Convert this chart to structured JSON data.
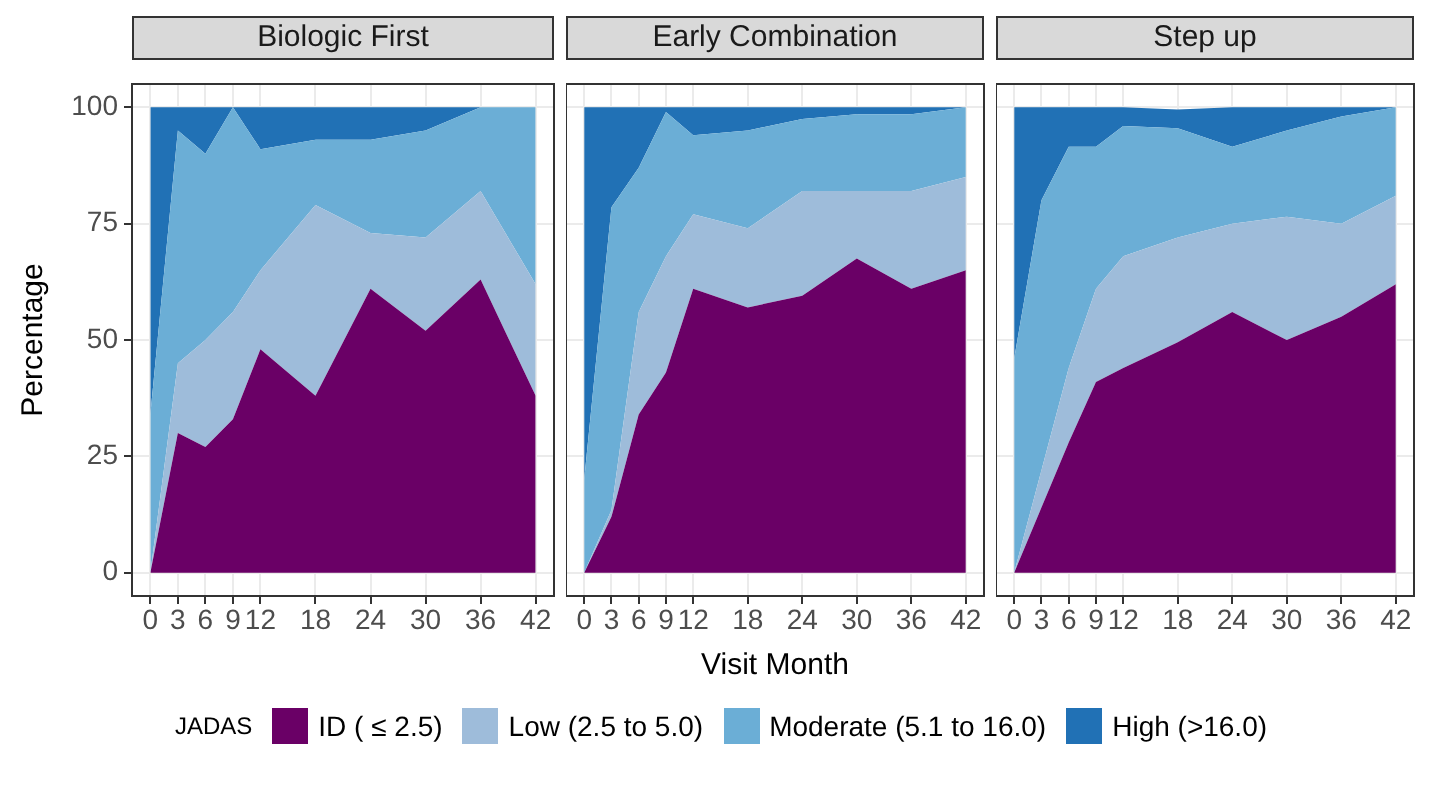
{
  "chart_data": [
    {
      "type": "area",
      "title": "Biologic First",
      "ylabel": "Percentage",
      "stacked": true,
      "grid": true,
      "legend": "bottom",
      "legend_title": "JADAS",
      "x": [
        0,
        3,
        6,
        9,
        12,
        18,
        24,
        30,
        36,
        42
      ],
      "xlim": [
        -2,
        44
      ],
      "xticks": [
        0,
        3,
        6,
        9,
        12,
        18,
        24,
        30,
        36,
        42
      ],
      "ylim": [
        -5,
        105
      ],
      "yticks": [
        0,
        25,
        50,
        75,
        100
      ],
      "series": [
        {
          "name": "ID ( ≤ 2.5)",
          "color": "#6a0066",
          "values": [
            0,
            30,
            27,
            33,
            48,
            38,
            61,
            52,
            63,
            38
          ]
        },
        {
          "name": "Low (2.5 to 5.0)",
          "color": "#9ebcda",
          "values": [
            0,
            15,
            23,
            23,
            17,
            41,
            12,
            20,
            19,
            24
          ]
        },
        {
          "name": "Moderate (5.1 to 16.0)",
          "color": "#6baed6",
          "values": [
            34,
            50,
            40,
            44,
            26,
            14,
            20,
            23,
            18,
            38
          ]
        },
        {
          "name": "High (>16.0)",
          "color": "#2171b5",
          "values": [
            66,
            5,
            10,
            0,
            9,
            7,
            7,
            5,
            0,
            0
          ]
        }
      ]
    },
    {
      "type": "area",
      "title": "Early Combination",
      "xlabel": "Visit Month",
      "stacked": true,
      "grid": true,
      "tick_labels": "x",
      "x": [
        0,
        3,
        6,
        9,
        12,
        18,
        24,
        30,
        36,
        42
      ],
      "xlim": [
        -2,
        44
      ],
      "xticks": [
        0,
        3,
        6,
        9,
        12,
        18,
        24,
        30,
        36,
        42
      ],
      "ylim": [
        -5,
        105
      ],
      "yticks": [
        0,
        25,
        50,
        75,
        100
      ],
      "series": [
        {
          "color": "#6a0066",
          "values": [
            0,
            12,
            34,
            43,
            61,
            57,
            59.5,
            67.5,
            61,
            65
          ]
        },
        {
          "color": "#9ebcda",
          "values": [
            0,
            1.5,
            22,
            25,
            16,
            17,
            22.5,
            14.5,
            21,
            20
          ]
        },
        {
          "color": "#6baed6",
          "values": [
            20,
            65,
            31,
            31,
            17,
            21,
            15.5,
            16.5,
            16.5,
            15
          ]
        },
        {
          "color": "#2171b5",
          "values": [
            80,
            21.5,
            13,
            1,
            6,
            5,
            2.5,
            1.5,
            1.5,
            0
          ]
        }
      ]
    },
    {
      "type": "area",
      "title": "Step up",
      "stacked": true,
      "grid": true,
      "tick_labels": "x",
      "x": [
        0,
        3,
        6,
        9,
        12,
        18,
        24,
        30,
        36,
        42
      ],
      "xlim": [
        -2,
        44
      ],
      "xticks": [
        0,
        3,
        6,
        9,
        12,
        18,
        24,
        30,
        36,
        42
      ],
      "ylim": [
        -5,
        105
      ],
      "yticks": [
        0,
        25,
        50,
        75,
        100
      ],
      "series": [
        {
          "color": "#6a0066",
          "values": [
            0,
            14,
            28,
            41,
            44,
            49.5,
            56,
            50,
            55,
            62
          ]
        },
        {
          "color": "#9ebcda",
          "values": [
            0,
            8,
            16,
            20,
            24,
            22.5,
            19,
            26.5,
            20,
            19
          ]
        },
        {
          "color": "#6baed6",
          "values": [
            46,
            58,
            47.5,
            30.5,
            28,
            23.5,
            16.5,
            18.5,
            23,
            19
          ]
        },
        {
          "color": "#2171b5",
          "values": [
            54,
            20,
            8.5,
            8.5,
            4,
            4,
            8.5,
            5,
            2,
            0
          ]
        }
      ]
    }
  ]
}
